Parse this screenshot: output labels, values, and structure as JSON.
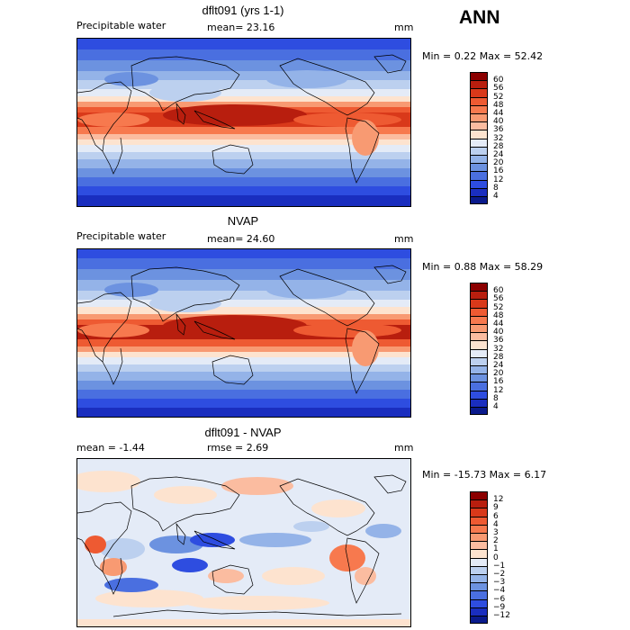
{
  "season": "ANN",
  "panels": [
    {
      "id": "model",
      "title": "dflt091 (yrs 1-1)",
      "left_label": "Precipitable water",
      "center_label": "mean=  23.16",
      "units": "mm",
      "minmax": "Min =    0.22  Max =   52.42",
      "colorbar": {
        "labels": [
          "60",
          "56",
          "52",
          "48",
          "44",
          "40",
          "36",
          "32",
          "28",
          "24",
          "20",
          "16",
          "12",
          "8",
          "4"
        ],
        "colors": [
          "#8b0000",
          "#b81e0e",
          "#d9391a",
          "#ee5a32",
          "#f7794e",
          "#f89a72",
          "#fbbca0",
          "#fde3cf",
          "#e4ebf7",
          "#bcd0ef",
          "#94b3e8",
          "#6c92e0",
          "#4a6fe0",
          "#2e4de0",
          "#1a2ebf",
          "#0a1a8c"
        ]
      }
    },
    {
      "id": "obs",
      "title": "NVAP",
      "left_label": "Precipitable water",
      "center_label": "mean=  24.60",
      "units": "mm",
      "minmax": "Min =    0.88  Max =   58.29",
      "colorbar": {
        "labels": [
          "60",
          "56",
          "52",
          "48",
          "44",
          "40",
          "36",
          "32",
          "28",
          "24",
          "20",
          "16",
          "12",
          "8",
          "4"
        ],
        "colors": [
          "#8b0000",
          "#b81e0e",
          "#d9391a",
          "#ee5a32",
          "#f7794e",
          "#f89a72",
          "#fbbca0",
          "#fde3cf",
          "#e4ebf7",
          "#bcd0ef",
          "#94b3e8",
          "#6c92e0",
          "#4a6fe0",
          "#2e4de0",
          "#1a2ebf",
          "#0a1a8c"
        ]
      }
    },
    {
      "id": "diff",
      "title": "dflt091 - NVAP",
      "left_label": "mean =   -1.44",
      "center_label": "rmse =    2.69",
      "units": "mm",
      "minmax": "Min = -15.73  Max =    6.17",
      "colorbar": {
        "labels": [
          "12",
          "9",
          "6",
          "4",
          "3",
          "2",
          "1",
          "0",
          "−1",
          "−2",
          "−3",
          "−4",
          "−6",
          "−9",
          "−12"
        ],
        "colors": [
          "#8b0000",
          "#b81e0e",
          "#d9391a",
          "#ee5a32",
          "#f7794e",
          "#f89a72",
          "#fbbca0",
          "#fde3cf",
          "#e4ebf7",
          "#bcd0ef",
          "#94b3e8",
          "#6c92e0",
          "#4a6fe0",
          "#2e4de0",
          "#1a2ebf",
          "#0a1a8c"
        ]
      }
    }
  ]
}
